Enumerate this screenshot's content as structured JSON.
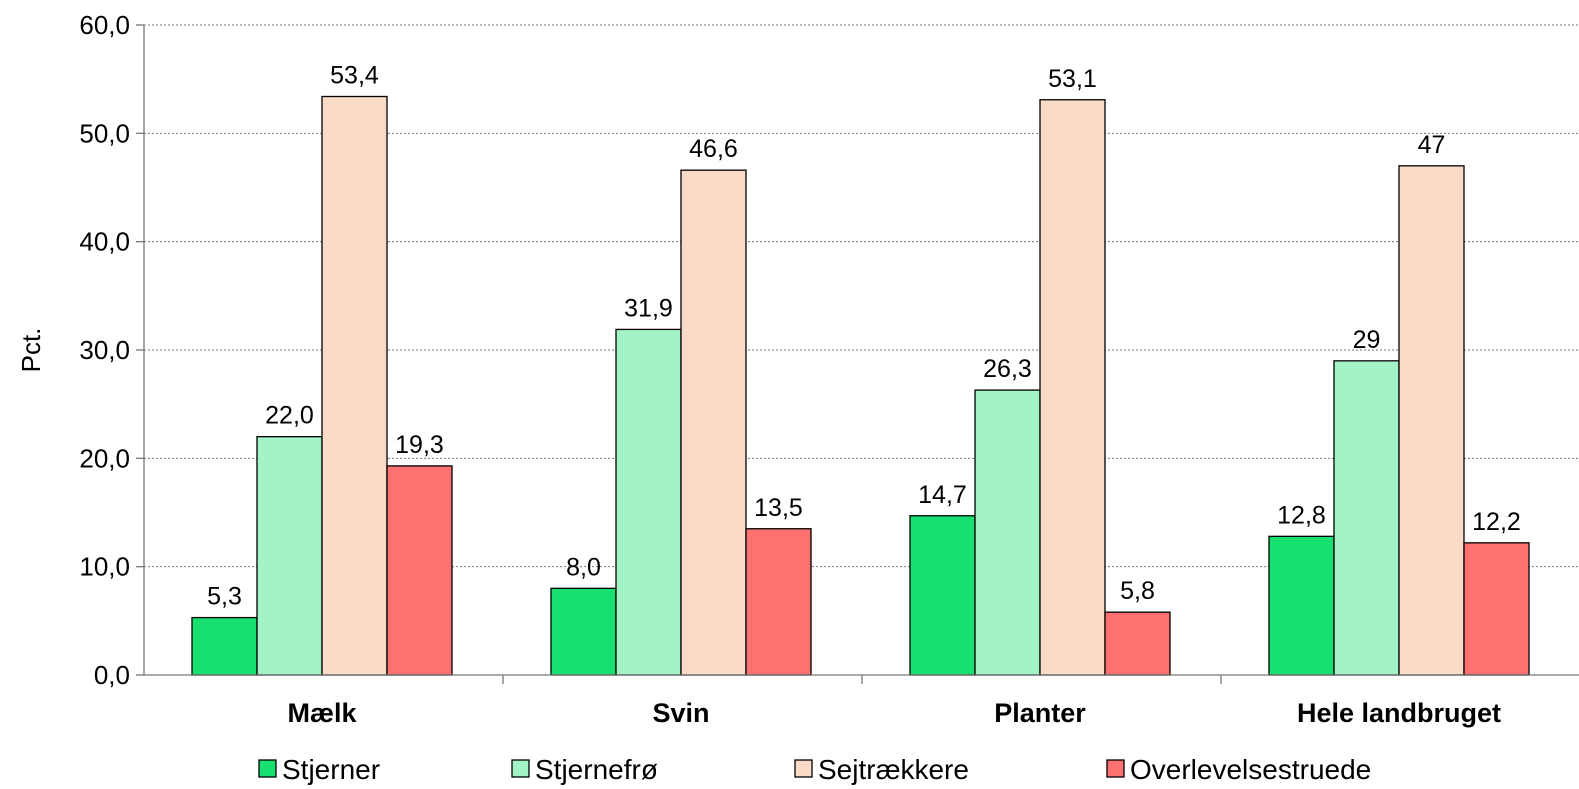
{
  "chart_data": {
    "type": "bar",
    "title": "",
    "xlabel": "",
    "ylabel": "Pct.",
    "ylim": [
      0,
      60
    ],
    "ytick_step": 10,
    "ytick_labels": [
      "0,0",
      "10,0",
      "20,0",
      "30,0",
      "40,0",
      "50,0",
      "60,0"
    ],
    "grid": "horizontal dotted",
    "legend_position": "bottom",
    "categories": [
      "Mælk",
      "Svin",
      "Planter",
      "Hele landbruget"
    ],
    "series": [
      {
        "name": "Stjerner",
        "color": "#18e070",
        "values": [
          5.3,
          8.0,
          14.7,
          12.8
        ],
        "labels": [
          "5,3",
          "8,0",
          "14,7",
          "12,8"
        ]
      },
      {
        "name": "Stjernefrø",
        "color": "#a2f4c6",
        "values": [
          22.0,
          31.9,
          26.3,
          29
        ],
        "labels": [
          "22,0",
          "31,9",
          "26,3",
          "29"
        ]
      },
      {
        "name": "Sejtrækkere",
        "color": "#fadbc8",
        "values": [
          53.4,
          46.6,
          53.1,
          47
        ],
        "labels": [
          "53,4",
          "46,6",
          "53,1",
          "47"
        ]
      },
      {
        "name": "Overlevelsestruede",
        "color": "#fd7171",
        "values": [
          19.3,
          13.5,
          5.8,
          12.2
        ],
        "labels": [
          "19,3",
          "13,5",
          "5,8",
          "12,2"
        ]
      }
    ]
  }
}
